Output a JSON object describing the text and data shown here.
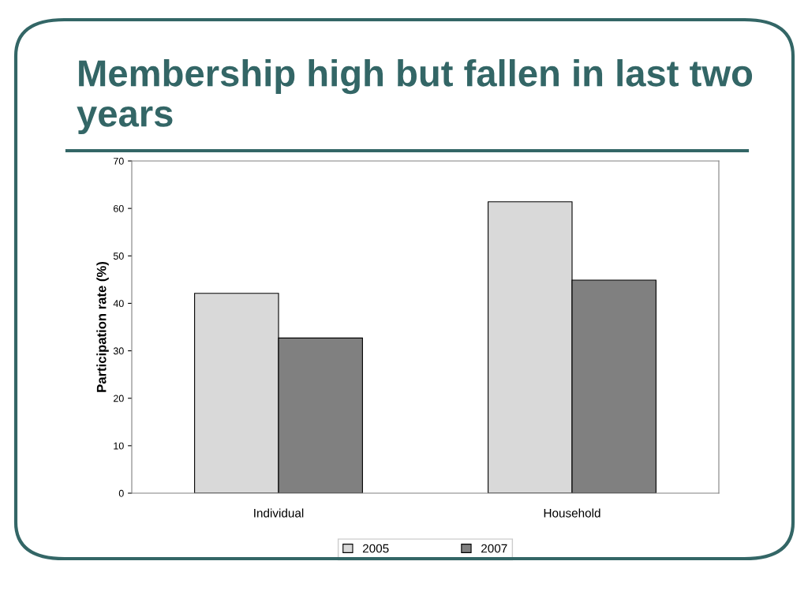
{
  "chart_data": {
    "type": "bar",
    "title": "Membership high but fallen in last two years",
    "ylabel": "Participation rate (%)",
    "categories": [
      "Individual",
      "Household"
    ],
    "series": [
      {
        "name": "2005",
        "color": "#d9d9d9",
        "values": [
          42.1,
          61.4
        ]
      },
      {
        "name": "2007",
        "color": "#808080",
        "values": [
          32.7,
          44.9
        ]
      }
    ],
    "ylim": [
      0,
      70
    ],
    "yticks": [
      0,
      10,
      20,
      30,
      40,
      50,
      60,
      70
    ],
    "grid": false,
    "legend": "bottom"
  }
}
